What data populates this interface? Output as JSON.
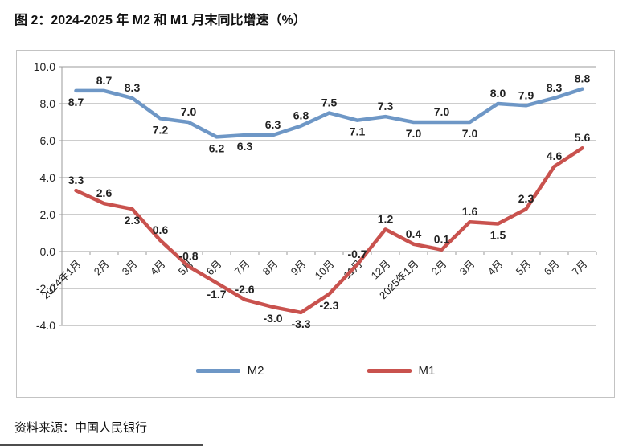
{
  "title": "图 2：2024-2025 年 M2 和 M1 月末同比增速（%）",
  "source": "资料来源：中国人民银行",
  "colors": {
    "m2": "#6E97C6",
    "m1": "#C9524E",
    "grid": "#9B9B9B",
    "axis": "#9B9B9B",
    "panel_border": "#C3C3C3",
    "label_text": "#222222"
  },
  "legend": {
    "items": [
      {
        "label": "M2",
        "color": "#6E97C6"
      },
      {
        "label": "M1",
        "color": "#C9524E"
      }
    ]
  },
  "chart_data": {
    "type": "line",
    "title": "2024-2025 年 M2 和 M1 月末同比增速（%）",
    "categories": [
      "2024年1月",
      "2月",
      "3月",
      "4月",
      "5月",
      "6月",
      "7月",
      "8月",
      "9月",
      "10月",
      "11月",
      "12月",
      "2025年1月",
      "2月",
      "3月",
      "4月",
      "5月",
      "6月",
      "7月"
    ],
    "series": [
      {
        "name": "M2",
        "color": "#6E97C6",
        "values": [
          8.7,
          8.7,
          8.3,
          7.2,
          7.0,
          6.2,
          6.3,
          6.3,
          6.8,
          7.5,
          7.1,
          7.3,
          7.0,
          7.0,
          7.0,
          8.0,
          7.9,
          8.3,
          8.8
        ],
        "label_pos": [
          "below",
          "above",
          "above",
          "below",
          "above",
          "below",
          "below",
          "above",
          "above",
          "above",
          "below",
          "above",
          "below",
          "above",
          "below",
          "above",
          "above",
          "above",
          "above"
        ]
      },
      {
        "name": "M1",
        "color": "#C9524E",
        "values": [
          3.3,
          2.6,
          2.3,
          0.6,
          -0.8,
          -1.7,
          -2.6,
          -3.0,
          -3.3,
          -2.3,
          -0.7,
          1.2,
          0.4,
          0.1,
          1.6,
          1.5,
          2.3,
          4.6,
          5.6
        ],
        "label_pos": [
          "above",
          "above",
          "below",
          "above",
          "above",
          "below",
          "above",
          "below",
          "below",
          "below",
          "above",
          "above",
          "above",
          "above",
          "above",
          "below",
          "above",
          "above",
          "above"
        ]
      }
    ],
    "ylim": [
      -4.0,
      10.0
    ],
    "ytick_labels": [
      "10.0",
      "8.0",
      "6.0",
      "4.0",
      "2.0",
      "0.0",
      "-2.0",
      "-4.0"
    ],
    "grid": true,
    "legend_position": "bottom"
  }
}
